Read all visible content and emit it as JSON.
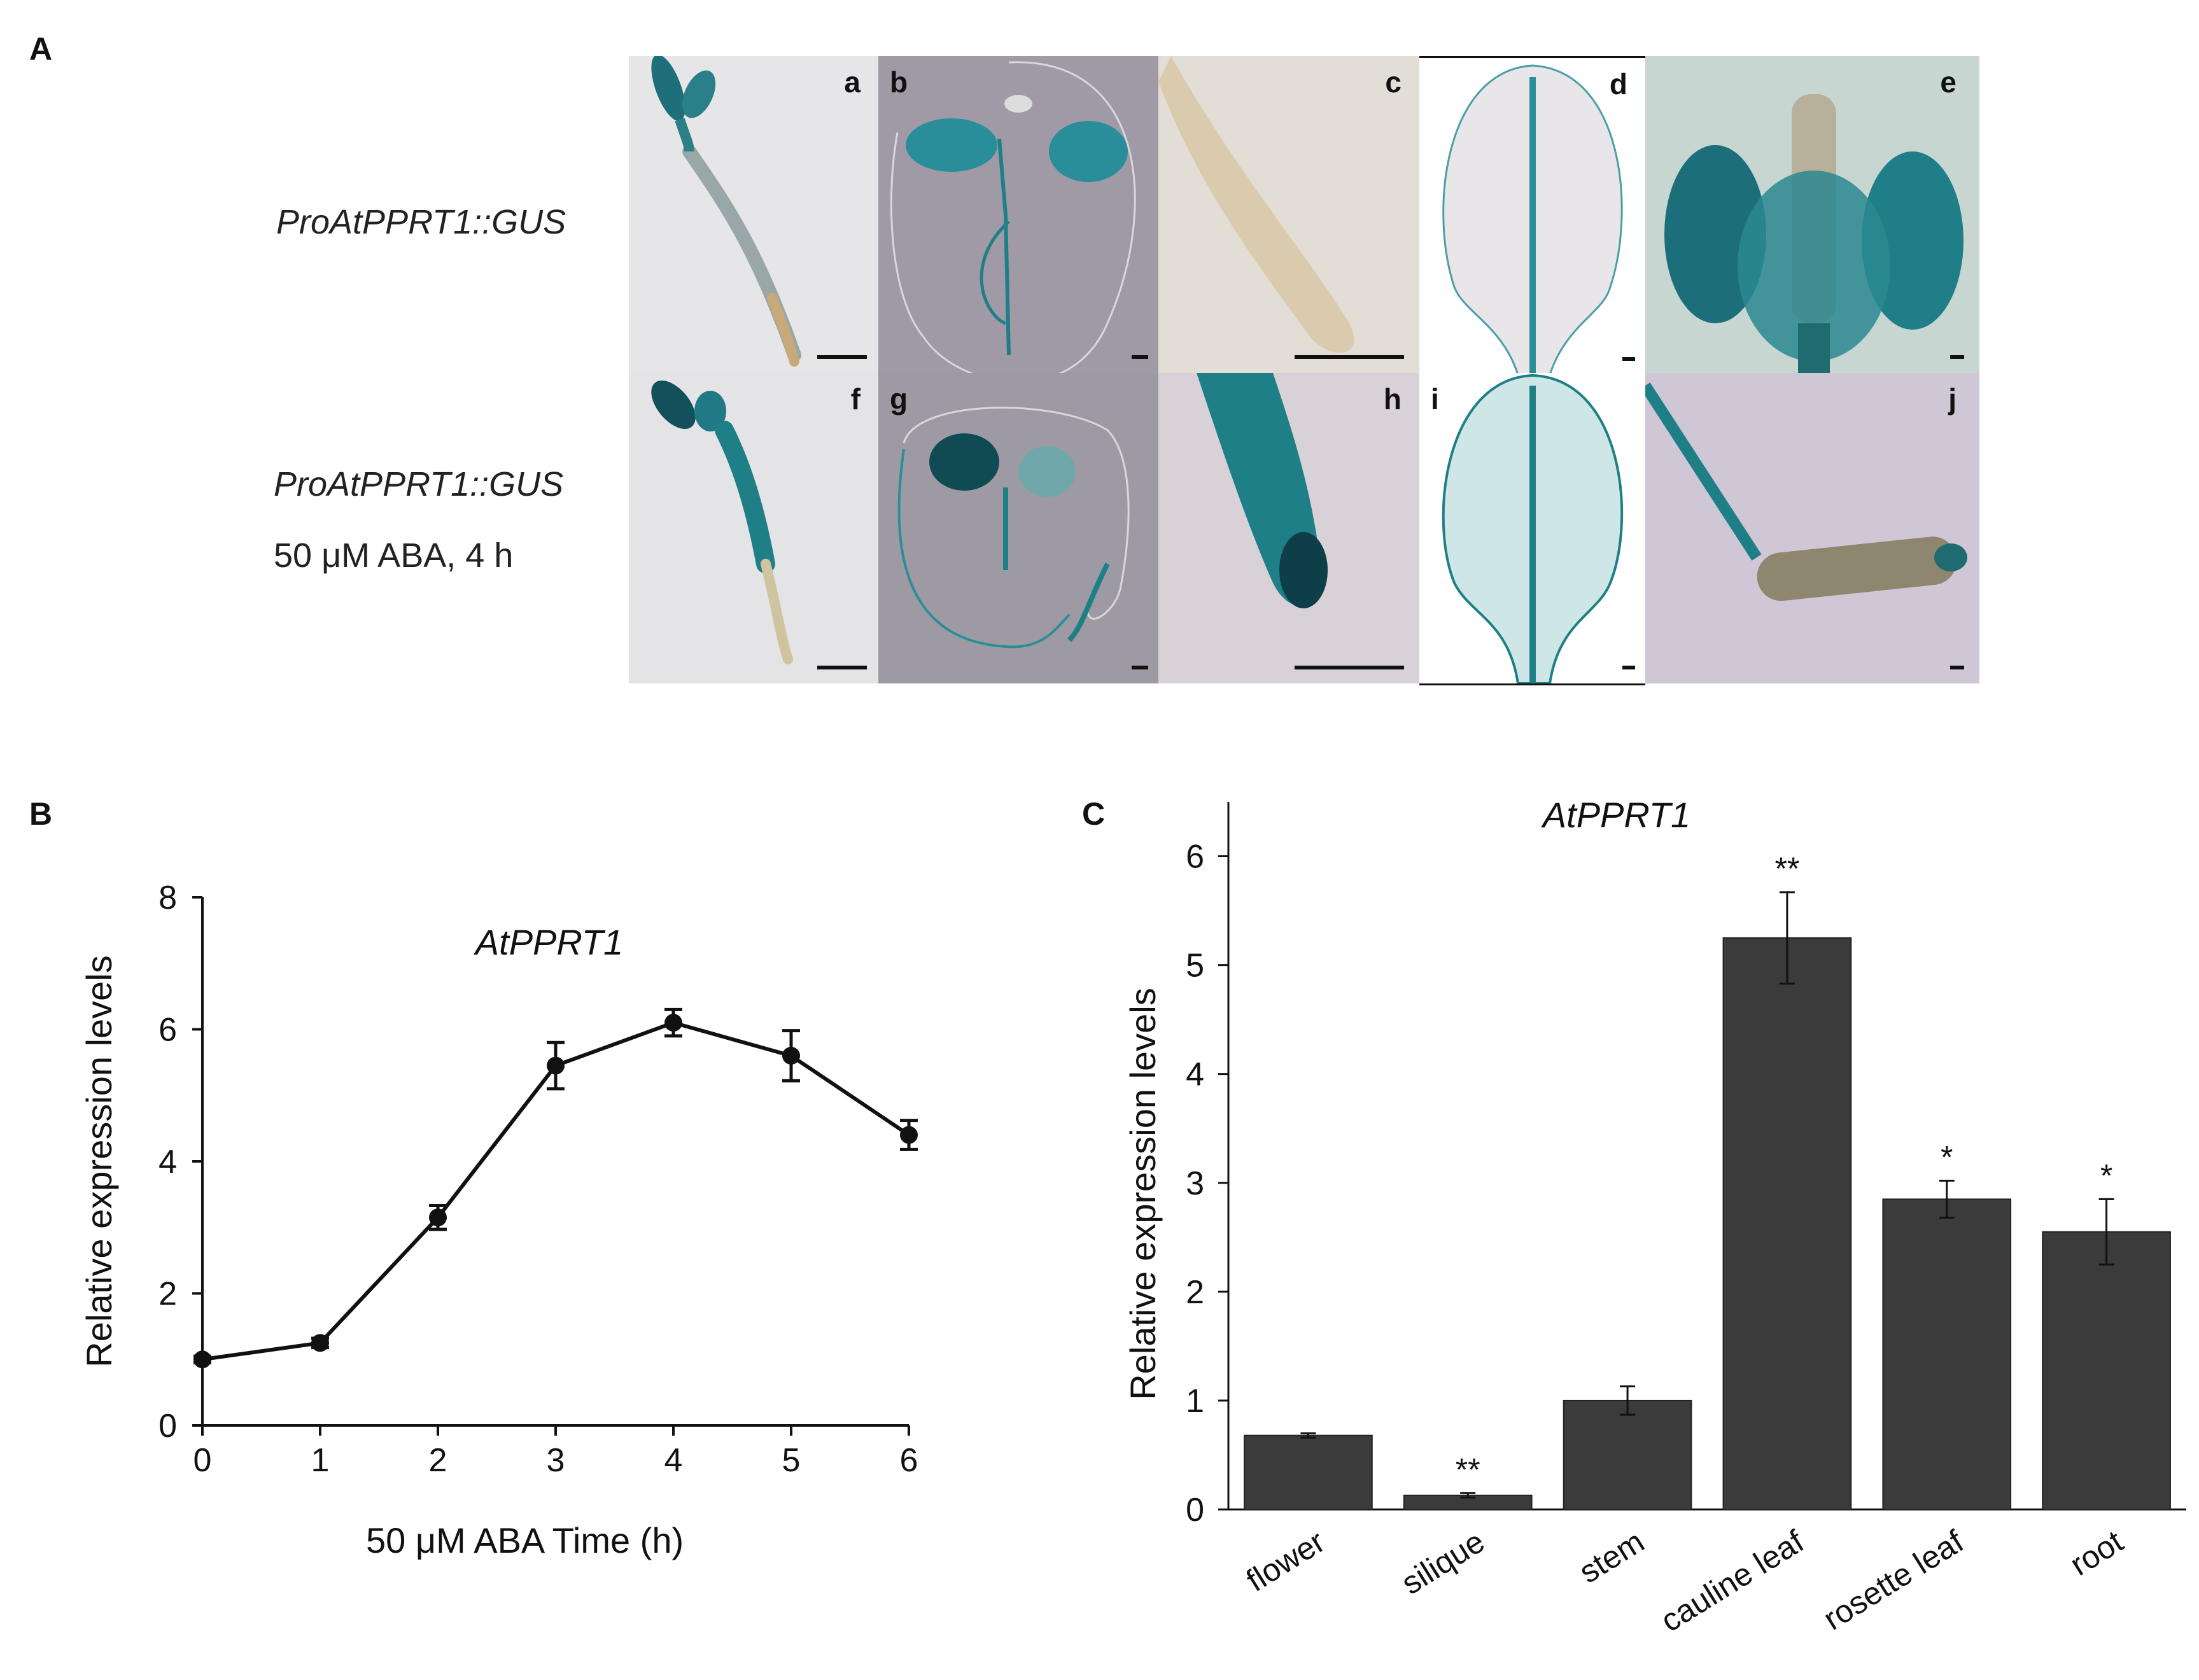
{
  "panels": {
    "A": {
      "label": "A",
      "row1_label": "ProAtPPRT1::GUS",
      "row2_label_1": "ProAtPPRT1::GUS",
      "row2_label_2": "50 μM ABA, 4 h",
      "images": [
        {
          "letter": "a",
          "subject": "seedling"
        },
        {
          "letter": "b",
          "subject": "seedling"
        },
        {
          "letter": "c",
          "subject": "root tip"
        },
        {
          "letter": "d",
          "subject": "leaf"
        },
        {
          "letter": "e",
          "subject": "flower"
        },
        {
          "letter": "f",
          "subject": "seedling"
        },
        {
          "letter": "g",
          "subject": "seedling"
        },
        {
          "letter": "h",
          "subject": "root tip"
        },
        {
          "letter": "i",
          "subject": "leaf"
        },
        {
          "letter": "j",
          "subject": "silique"
        }
      ]
    },
    "B": {
      "label": "B"
    },
    "C": {
      "label": "C"
    }
  },
  "colors": {
    "gus_blue": "#1e7f86",
    "bar_fill": "#3b3b3b",
    "line": "#111111"
  },
  "chart_data": [
    {
      "type": "line",
      "title": "AtPPRT1",
      "xlabel": "50 μM ABA   Time (h)",
      "ylabel": "Relative expression levels",
      "x": [
        0,
        1,
        2,
        3,
        4,
        5,
        6
      ],
      "x_ticks": [
        "0",
        "1",
        "2",
        "3",
        "4",
        "5",
        "6"
      ],
      "y": [
        1.0,
        1.25,
        3.15,
        5.45,
        6.1,
        5.6,
        4.4
      ],
      "error": [
        0.05,
        0.07,
        0.18,
        0.35,
        0.2,
        0.38,
        0.22
      ],
      "ylim": [
        0,
        8
      ],
      "y_ticks": [
        "0",
        "2",
        "4",
        "6",
        "8"
      ],
      "grid": false
    },
    {
      "type": "bar",
      "title": "AtPPRT1",
      "xlabel": "",
      "ylabel": "Relative expression levels",
      "categories": [
        "flower",
        "silique",
        "stem",
        "cauline leaf",
        "rosette leaf",
        "root"
      ],
      "values": [
        0.68,
        0.13,
        1.0,
        5.25,
        2.85,
        2.55
      ],
      "error": [
        0.02,
        0.02,
        0.13,
        0.42,
        0.17,
        0.3
      ],
      "annotations": [
        "",
        "**",
        "",
        "**",
        "*",
        "*"
      ],
      "ylim": [
        0,
        6.5
      ],
      "y_ticks": [
        "0",
        "1",
        "2",
        "3",
        "4",
        "5",
        "6"
      ],
      "grid": false
    }
  ]
}
